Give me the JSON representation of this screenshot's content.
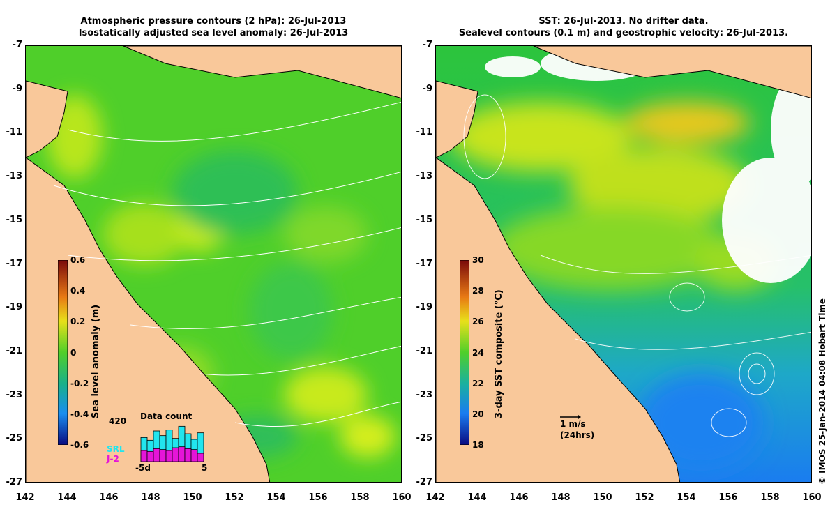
{
  "left_panel": {
    "title_line1": "Atmospheric pressure contours (2 hPa): 26-Jul-2013",
    "title_line2": "Isostatically adjusted sea level anomaly: 26-Jul-2013",
    "colorbar": {
      "label": "Sea level anomaly (m)",
      "ticks": [
        "0.6",
        "0.4",
        "0.2",
        "0",
        "-0.2",
        "-0.4",
        "-0.6"
      ]
    },
    "data_count": {
      "title": "Data count",
      "max_label": "420",
      "x_left": "-5d",
      "x_right": "5",
      "legend_srl": "SRL",
      "legend_j2": "J-2",
      "srl_color": "#22e5ee",
      "j2_color": "#e515d8",
      "srl_values": [
        260,
        230,
        330,
        280,
        340,
        250,
        380,
        300,
        240,
        310
      ],
      "j2_values": [
        120,
        110,
        140,
        130,
        120,
        150,
        160,
        140,
        130,
        90
      ]
    }
  },
  "right_panel": {
    "title_line1": "SST: 26-Jul-2013. No drifter data.",
    "title_line2": "Sealevel contours (0.1 m) and geostrophic velocity: 26-Jul-2013.",
    "colorbar": {
      "label": "3-day SST composite (°C)",
      "ticks": [
        "30",
        "28",
        "26",
        "24",
        "22",
        "20",
        "18"
      ]
    },
    "velocity_scale_label": "1 m/s",
    "velocity_scale_sub": "(24hrs)"
  },
  "axes": {
    "y_ticks": [
      "-7",
      "-9",
      "-11",
      "-13",
      "-15",
      "-17",
      "-19",
      "-21",
      "-23",
      "-25",
      "-27"
    ],
    "x_ticks": [
      "142",
      "144",
      "146",
      "148",
      "150",
      "152",
      "154",
      "156",
      "158",
      "160"
    ]
  },
  "credit": "© IMOS 25-Jan-2014 04:08 Hobart Time",
  "colors": {
    "land": "#f9c89a",
    "sea_anomaly_base": "#4fcf2a",
    "sst_green": "#30c840",
    "sst_blue": "#1a8ef0"
  }
}
